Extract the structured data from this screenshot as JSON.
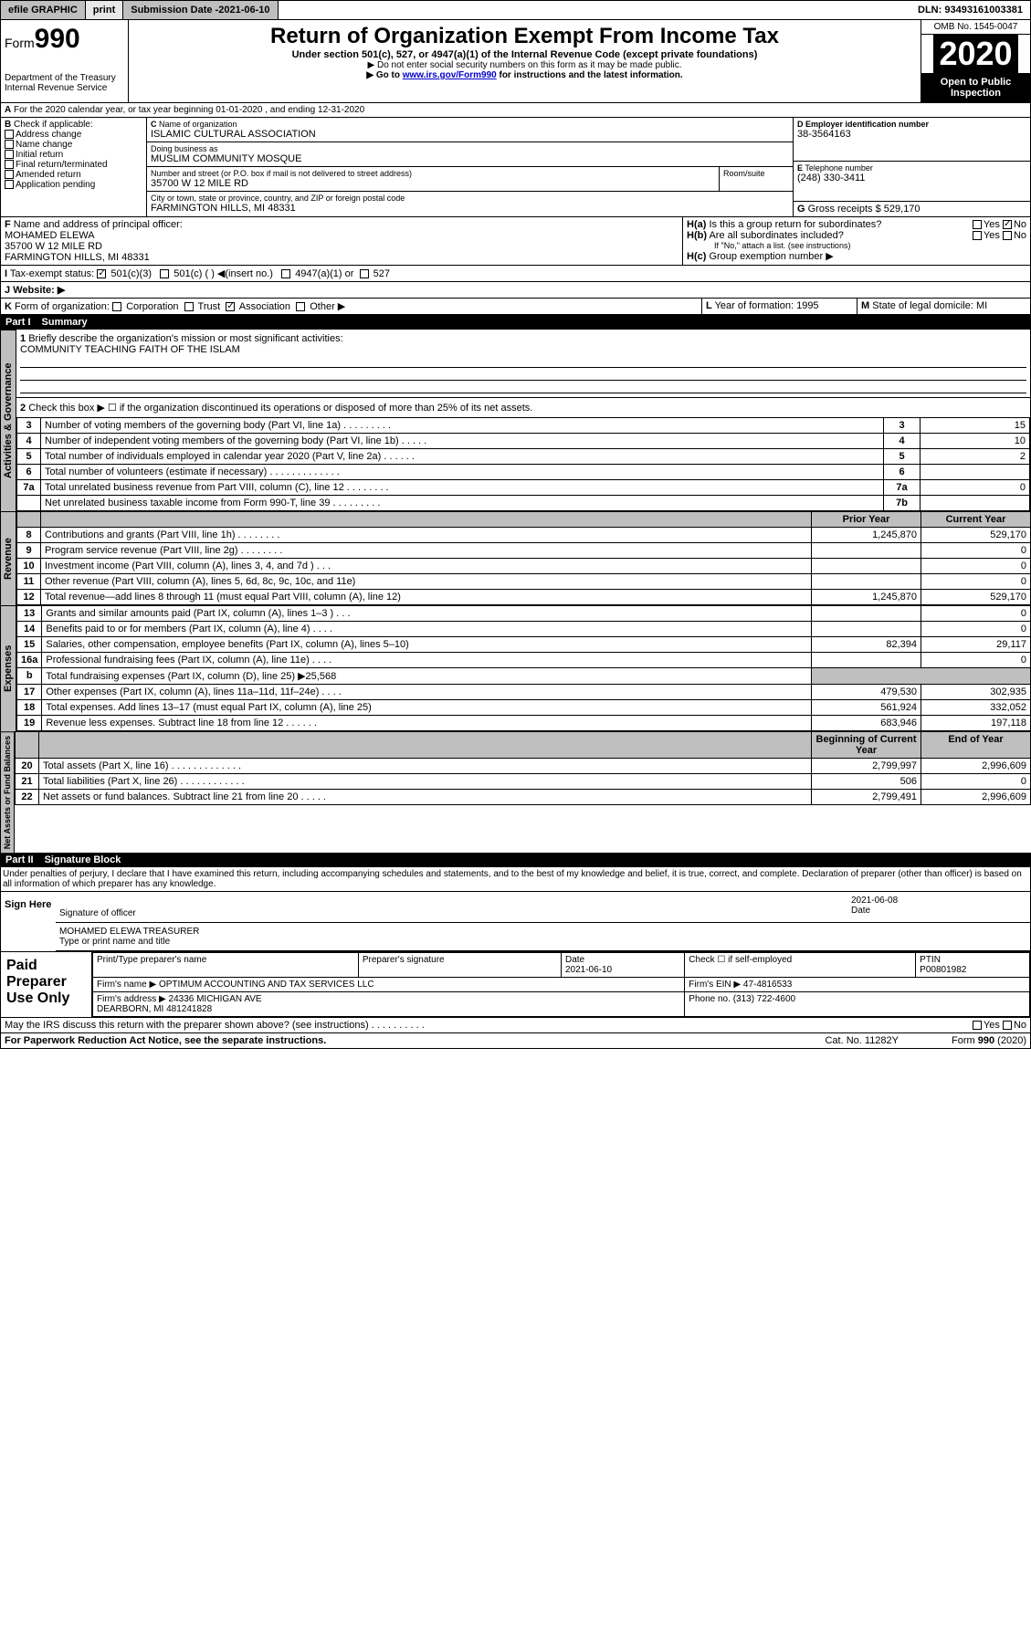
{
  "topbar": {
    "efile": "efile GRAPHIC",
    "print": "print",
    "sub_label": "Submission Date - ",
    "sub_date": "2021-06-10",
    "dln": "DLN: 93493161003381"
  },
  "header": {
    "form_prefix": "Form",
    "form_no": "990",
    "dept": "Department of the Treasury\nInternal Revenue Service",
    "title": "Return of Organization Exempt From Income Tax",
    "subtitle": "Under section 501(c), 527, or 4947(a)(1) of the Internal Revenue Code (except private foundations)",
    "instr1": "▶ Do not enter social security numbers on this form as it may be made public.",
    "instr2_a": "▶ Go to ",
    "instr2_link": "www.irs.gov/Form990",
    "instr2_b": " for instructions and the latest information.",
    "omb": "OMB No. 1545-0047",
    "year": "2020",
    "inspect": "Open to Public Inspection"
  },
  "A": {
    "text": "For the 2020 calendar year, or tax year beginning 01-01-2020   , and ending 12-31-2020"
  },
  "B": {
    "label": "Check if applicable:",
    "items": [
      "Address change",
      "Name change",
      "Initial return",
      "Final return/terminated",
      "Amended return",
      "Application pending"
    ]
  },
  "C": {
    "name_lbl": "Name of organization",
    "name": "ISLAMIC CULTURAL ASSOCIATION",
    "dba_lbl": "Doing business as",
    "dba": "MUSLIM COMMUNITY MOSQUE",
    "addr_lbl": "Number and street (or P.O. box if mail is not delivered to street address)",
    "room_lbl": "Room/suite",
    "addr": "35700 W 12 MILE RD",
    "city_lbl": "City or town, state or province, country, and ZIP or foreign postal code",
    "city": "FARMINGTON HILLS, MI  48331"
  },
  "D": {
    "lbl": "Employer identification number",
    "val": "38-3564163"
  },
  "E": {
    "lbl": "Telephone number",
    "val": "(248) 330-3411"
  },
  "G": {
    "lbl": "Gross receipts $",
    "val": "529,170"
  },
  "F": {
    "lbl": "Name and address of principal officer:",
    "name": "MOHAMED ELEWA",
    "addr1": "35700 W 12 MILE RD",
    "addr2": "FARMINGTON HILLS, MI  48331"
  },
  "H": {
    "a": "Is this a group return for subordinates?",
    "b": "Are all subordinates included?",
    "c": "Group exemption number ▶",
    "note": "If \"No,\" attach a list. (see instructions)",
    "yes": "Yes",
    "no": "No"
  },
  "I": {
    "lbl": "Tax-exempt status:",
    "c501c3": "501(c)(3)",
    "c501c": "501(c) (  ) ◀(insert no.)",
    "c4947": "4947(a)(1) or",
    "c527": "527"
  },
  "J": {
    "lbl": "Website: ▶"
  },
  "K": {
    "lbl": "Form of organization:",
    "corp": "Corporation",
    "trust": "Trust",
    "assoc": "Association",
    "other": "Other ▶"
  },
  "L": {
    "lbl": "Year of formation:",
    "val": "1995"
  },
  "M": {
    "lbl": "State of legal domicile:",
    "val": "MI"
  },
  "part1": {
    "label": "Part I",
    "title": "Summary"
  },
  "summary": {
    "q1": "Briefly describe the organization's mission or most significant activities:",
    "mission": "COMMUNITY TEACHING FAITH OF THE ISLAM",
    "q2": "Check this box ▶ ☐  if the organization discontinued its operations or disposed of more than 25% of its net assets.",
    "lines_top": [
      {
        "n": "3",
        "d": "Number of voting members of the governing body (Part VI, line 1a)   .    .    .    .    .    .    .    .    .",
        "k": "3",
        "v": "15"
      },
      {
        "n": "4",
        "d": "Number of independent voting members of the governing body (Part VI, line 1b)   .    .    .    .    .",
        "k": "4",
        "v": "10"
      },
      {
        "n": "5",
        "d": "Total number of individuals employed in calendar year 2020 (Part V, line 2a)   .    .    .    .    .    .",
        "k": "5",
        "v": "2"
      },
      {
        "n": "6",
        "d": "Total number of volunteers (estimate if necessary)   .    .    .    .    .    .    .    .    .    .    .    .    .",
        "k": "6",
        "v": ""
      },
      {
        "n": "7a",
        "d": "Total unrelated business revenue from Part VIII, column (C), line 12   .    .    .    .    .    .    .    .",
        "k": "7a",
        "v": "0"
      },
      {
        "n": "",
        "d": "Net unrelated business taxable income from Form 990-T, line 39   .    .    .    .    .    .    .    .    .",
        "k": "7b",
        "v": ""
      }
    ],
    "col_prior": "Prior Year",
    "col_curr": "Current Year",
    "rev": [
      {
        "n": "8",
        "d": "Contributions and grants (Part VIII, line 1h)   .    .    .    .    .    .    .    .",
        "p": "1,245,870",
        "c": "529,170"
      },
      {
        "n": "9",
        "d": "Program service revenue (Part VIII, line 2g)   .    .    .    .    .    .    .    .",
        "p": "",
        "c": "0"
      },
      {
        "n": "10",
        "d": "Investment income (Part VIII, column (A), lines 3, 4, and 7d )   .    .    .",
        "p": "",
        "c": "0"
      },
      {
        "n": "11",
        "d": "Other revenue (Part VIII, column (A), lines 5, 6d, 8c, 9c, 10c, and 11e)",
        "p": "",
        "c": "0"
      },
      {
        "n": "12",
        "d": "Total revenue—add lines 8 through 11 (must equal Part VIII, column (A), line 12)",
        "p": "1,245,870",
        "c": "529,170"
      }
    ],
    "exp": [
      {
        "n": "13",
        "d": "Grants and similar amounts paid (Part IX, column (A), lines 1–3 )   .    .    .",
        "p": "",
        "c": "0"
      },
      {
        "n": "14",
        "d": "Benefits paid to or for members (Part IX, column (A), line 4)   .    .    .    .",
        "p": "",
        "c": "0"
      },
      {
        "n": "15",
        "d": "Salaries, other compensation, employee benefits (Part IX, column (A), lines 5–10)",
        "p": "82,394",
        "c": "29,117"
      },
      {
        "n": "16a",
        "d": "Professional fundraising fees (Part IX, column (A), line 11e)   .    .    .    .",
        "p": "",
        "c": "0"
      },
      {
        "n": "b",
        "d": "Total fundraising expenses (Part IX, column (D), line 25) ▶25,568",
        "p": "—",
        "c": "—"
      },
      {
        "n": "17",
        "d": "Other expenses (Part IX, column (A), lines 11a–11d, 11f–24e)   .    .    .    .",
        "p": "479,530",
        "c": "302,935"
      },
      {
        "n": "18",
        "d": "Total expenses. Add lines 13–17 (must equal Part IX, column (A), line 25)",
        "p": "561,924",
        "c": "332,052"
      },
      {
        "n": "19",
        "d": "Revenue less expenses. Subtract line 18 from line 12   .    .    .    .    .    .",
        "p": "683,946",
        "c": "197,118"
      }
    ],
    "col_boy": "Beginning of Current Year",
    "col_eoy": "End of Year",
    "net": [
      {
        "n": "20",
        "d": "Total assets (Part X, line 16)   .    .    .    .    .    .    .    .    .    .    .    .    .",
        "p": "2,799,997",
        "c": "2,996,609"
      },
      {
        "n": "21",
        "d": "Total liabilities (Part X, line 26)   .    .    .    .    .    .    .    .    .    .    .    .",
        "p": "506",
        "c": "0"
      },
      {
        "n": "22",
        "d": "Net assets or fund balances. Subtract line 21 from line 20  .    .    .    .    .",
        "p": "2,799,491",
        "c": "2,996,609"
      }
    ]
  },
  "part2": {
    "label": "Part II",
    "title": "Signature Block",
    "decl": "Under penalties of perjury, I declare that I have examined this return, including accompanying schedules and statements, and to the best of my knowledge and belief, it is true, correct, and complete. Declaration of preparer (other than officer) is based on all information of which preparer has any knowledge."
  },
  "sign": {
    "here": "Sign Here",
    "sig_lbl": "Signature of officer",
    "date": "2021-06-08",
    "date_lbl": "Date",
    "name": "MOHAMED ELEWA  TREASURER",
    "name_lbl": "Type or print name and title"
  },
  "paid": {
    "title": "Paid Preparer Use Only",
    "h_name": "Print/Type preparer's name",
    "h_sig": "Preparer's signature",
    "h_date": "Date",
    "date": "2021-06-10",
    "h_check": "Check ☐ if self-employed",
    "h_ptin": "PTIN",
    "ptin": "P00801982",
    "firm_lbl": "Firm's name    ▶",
    "firm": "OPTIMUM ACCOUNTING AND TAX SERVICES LLC",
    "ein_lbl": "Firm's EIN ▶",
    "ein": "47-4816533",
    "addr_lbl": "Firm's address ▶",
    "addr": "24336 MICHIGAN AVE\nDEARBORN, MI  481241828",
    "phone_lbl": "Phone no.",
    "phone": "(313) 722-4600"
  },
  "footer": {
    "discuss": "May the IRS discuss this return with the preparer shown above? (see instructions)   .    .    .    .    .    .    .    .    .    .",
    "yes": "Yes",
    "no": "No",
    "pra": "For Paperwork Reduction Act Notice, see the separate instructions.",
    "cat": "Cat. No. 11282Y",
    "form": "Form 990 (2020)"
  },
  "vtabs": {
    "gov": "Activities & Governance",
    "rev": "Revenue",
    "exp": "Expenses",
    "net": "Net Assets or Fund Balances"
  }
}
